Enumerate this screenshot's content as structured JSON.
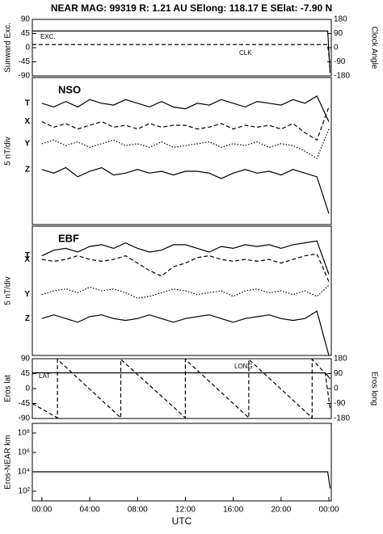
{
  "title": "NEAR MAG: 99319  R: 1.21 AU  SElong: 118.17 E  SElat:  -7.90 N",
  "chart_data": [
    {
      "type": "line",
      "ylabel": "Sunward Exc.",
      "y2label": "Clock Angle",
      "xlim": [
        -0.8,
        24.2
      ],
      "x": [
        -0.8,
        23.9,
        24.1
      ],
      "ylim": [
        -90,
        90
      ],
      "yticks": [
        90,
        45,
        0,
        -45,
        -90
      ],
      "y2lim": [
        -180,
        180
      ],
      "y2ticks": [
        180,
        90,
        0,
        -90,
        -180
      ],
      "series": [
        {
          "name": "EXC.",
          "color": "#000000",
          "dash": "solid",
          "values": [
            53,
            53,
            -80
          ]
        },
        {
          "name": "CLK",
          "color": "#000000",
          "dash": "dashed",
          "axis": "y2",
          "values": [
            20,
            20,
            -120
          ]
        }
      ]
    },
    {
      "type": "line",
      "title": "NSO",
      "ylabel": "5 nT/div",
      "xlim": [
        -0.8,
        24.2
      ],
      "ylim": [
        0,
        40
      ],
      "x": [
        0,
        1,
        2,
        3,
        4,
        5,
        6,
        7,
        8,
        9,
        10,
        11,
        12,
        13,
        14,
        15,
        16,
        17,
        18,
        19,
        20,
        21,
        22,
        23,
        24
      ],
      "series": [
        {
          "name": "T",
          "color": "#000000",
          "dash": "solid",
          "values": [
            33,
            32,
            33.5,
            32,
            34,
            33,
            32.5,
            34,
            33,
            32,
            33.5,
            32,
            31.5,
            33,
            32.5,
            34,
            33,
            32,
            33.5,
            33,
            32.5,
            34,
            33,
            35,
            28
          ]
        },
        {
          "name": "X",
          "color": "#000000",
          "dash": "dashed",
          "values": [
            28,
            26.5,
            27.5,
            26,
            27,
            28,
            26.5,
            27,
            26,
            27.5,
            26.5,
            27,
            27,
            26,
            26.5,
            27.5,
            26,
            27,
            26.5,
            27,
            26,
            27.5,
            25,
            23,
            32
          ]
        },
        {
          "name": "Y",
          "color": "#000000",
          "dash": "dotted",
          "values": [
            22,
            23,
            21.5,
            22.5,
            21,
            22,
            23,
            21.5,
            22,
            21,
            22.5,
            21,
            21.5,
            22,
            22.5,
            21,
            22,
            21.5,
            22.5,
            21,
            22,
            21.5,
            20,
            18,
            26
          ]
        },
        {
          "name": "Z",
          "color": "#000000",
          "dash": "solid",
          "values": [
            15,
            14,
            15.5,
            13,
            14.5,
            15.5,
            13.5,
            14,
            15,
            14,
            14.5,
            13.5,
            14.5,
            14.5,
            14,
            12.5,
            14,
            15,
            14,
            14.5,
            13.5,
            15,
            14,
            13,
            3
          ]
        }
      ]
    },
    {
      "type": "line",
      "title": "EBF",
      "ylabel": "5 nT/div",
      "xlim": [
        -0.8,
        24.2
      ],
      "ylim": [
        0,
        35
      ],
      "x": [
        0,
        1,
        2,
        3,
        4,
        5,
        6,
        7,
        8,
        9,
        10,
        11,
        12,
        13,
        14,
        15,
        16,
        17,
        18,
        19,
        20,
        21,
        22,
        23,
        24
      ],
      "series": [
        {
          "name": "T",
          "color": "#000000",
          "dash": "solid",
          "values": [
            27,
            28.5,
            29,
            28,
            29.5,
            30,
            29,
            30.5,
            29,
            28,
            28.5,
            30,
            30,
            29,
            28,
            29.5,
            29,
            30,
            29.5,
            30,
            29,
            30,
            30.5,
            31,
            22
          ]
        },
        {
          "name": "X",
          "color": "#000000",
          "dash": "dashed",
          "values": [
            26,
            25.5,
            26,
            27,
            26,
            25.5,
            26,
            27,
            25,
            23,
            21.5,
            24,
            25,
            26.5,
            27,
            26,
            25.5,
            26,
            25.5,
            26,
            25,
            26,
            27,
            27.5,
            20
          ]
        },
        {
          "name": "Y",
          "color": "#000000",
          "dash": "dotted",
          "values": [
            16.5,
            17.5,
            18,
            17,
            18.5,
            17.5,
            18,
            17,
            15.5,
            16,
            17,
            18,
            17.5,
            16.5,
            17,
            17.5,
            16,
            17.5,
            18,
            17,
            17.5,
            16.5,
            17.5,
            16,
            19
          ]
        },
        {
          "name": "Z",
          "color": "#000000",
          "dash": "solid",
          "values": [
            10,
            11,
            10,
            9,
            10.5,
            11,
            10,
            9.5,
            10,
            11,
            10,
            9,
            10,
            10.5,
            11,
            10,
            9,
            10,
            10.5,
            11,
            10,
            9.5,
            10,
            12,
            0
          ]
        }
      ]
    },
    {
      "type": "line",
      "ylabel": "Eros lat",
      "y2label": "Eros long",
      "xlim": [
        -0.8,
        24.2
      ],
      "ylim": [
        -90,
        90
      ],
      "yticks": [
        90,
        45,
        0,
        -45,
        -90
      ],
      "y2lim": [
        -180,
        180
      ],
      "y2ticks": [
        180,
        90,
        0,
        -90,
        -180
      ],
      "x": [
        -0.8,
        1.3,
        1.3,
        6.6,
        6.6,
        12,
        12,
        17.3,
        17.3,
        22.6,
        22.6,
        23.7,
        24.1
      ],
      "series": [
        {
          "name": "LAT",
          "color": "#000000",
          "dash": "dashed",
          "values": [
            -45,
            -88,
            88,
            -88,
            88,
            -88,
            88,
            -88,
            88,
            -88,
            88,
            45,
            -60
          ]
        },
        {
          "name": "LONG",
          "color": "#000000",
          "dash": "solid",
          "axis": "y2",
          "values": [
            95,
            95,
            95,
            95,
            95,
            95,
            95,
            95,
            95,
            95,
            95,
            95,
            60
          ]
        }
      ]
    },
    {
      "type": "line",
      "ylabel": "Eros-NEAR km",
      "xlabel": "UTC",
      "log": true,
      "xlim": [
        -0.8,
        24.2
      ],
      "ylim": [
        10,
        1000000000
      ],
      "yticks": [
        {
          "value": 100000000,
          "label": "10⁸"
        },
        {
          "value": 1000000,
          "label": "10⁶"
        },
        {
          "value": 10000,
          "label": "10⁴"
        },
        {
          "value": 100,
          "label": "10²"
        }
      ],
      "xticks": [
        {
          "value": 0,
          "label": "00:00"
        },
        {
          "value": 4,
          "label": "04:00"
        },
        {
          "value": 8,
          "label": "08:00"
        },
        {
          "value": 12,
          "label": "12:00"
        },
        {
          "value": 16,
          "label": "16:00"
        },
        {
          "value": 20,
          "label": "20:00"
        },
        {
          "value": 24,
          "label": "00:00"
        }
      ],
      "x": [
        -0.8,
        23.9,
        24.1
      ],
      "series": [
        {
          "name": "Eros-NEAR km",
          "color": "#000000",
          "dash": "solid",
          "values": [
            10000,
            10000,
            200
          ]
        }
      ]
    }
  ]
}
